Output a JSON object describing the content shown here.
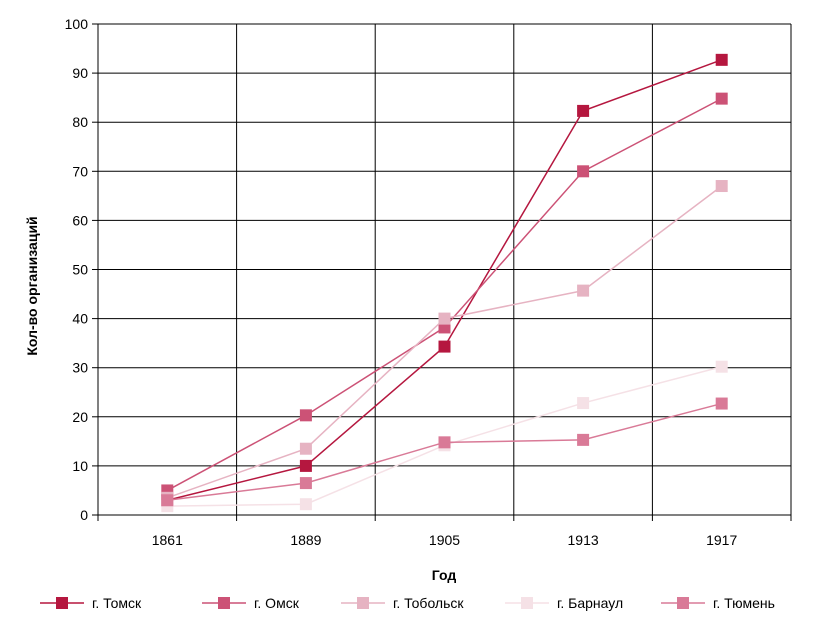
{
  "chart_data": {
    "type": "line",
    "title": "",
    "xlabel": "Год",
    "ylabel": "Кол-во организаций",
    "categories": [
      "1861",
      "1889",
      "1905",
      "1913",
      "1917"
    ],
    "ylim": [
      0,
      100
    ],
    "yticks": [
      0,
      10,
      20,
      30,
      40,
      50,
      60,
      70,
      80,
      90,
      100
    ],
    "grid": true,
    "legend_position": "bottom",
    "series": [
      {
        "name": "г. Томск",
        "color": "#b5173f",
        "values": [
          3,
          10,
          34.3,
          82.3,
          92.7
        ]
      },
      {
        "name": "г. Омск",
        "color": "#cc5276",
        "values": [
          5,
          20.3,
          38.2,
          70,
          84.8
        ]
      },
      {
        "name": "г. Тобольск",
        "color": "#e6b3c2",
        "values": [
          3.5,
          13.5,
          40,
          45.7,
          67
        ]
      },
      {
        "name": "г. Барнаул",
        "color": "#f5e1e6",
        "values": [
          1.8,
          2.2,
          14.2,
          22.8,
          30.2
        ]
      },
      {
        "name": "г. Тюмень",
        "color": "#d97a97",
        "values": [
          3,
          6.5,
          14.8,
          15.3,
          22.7
        ]
      }
    ]
  }
}
